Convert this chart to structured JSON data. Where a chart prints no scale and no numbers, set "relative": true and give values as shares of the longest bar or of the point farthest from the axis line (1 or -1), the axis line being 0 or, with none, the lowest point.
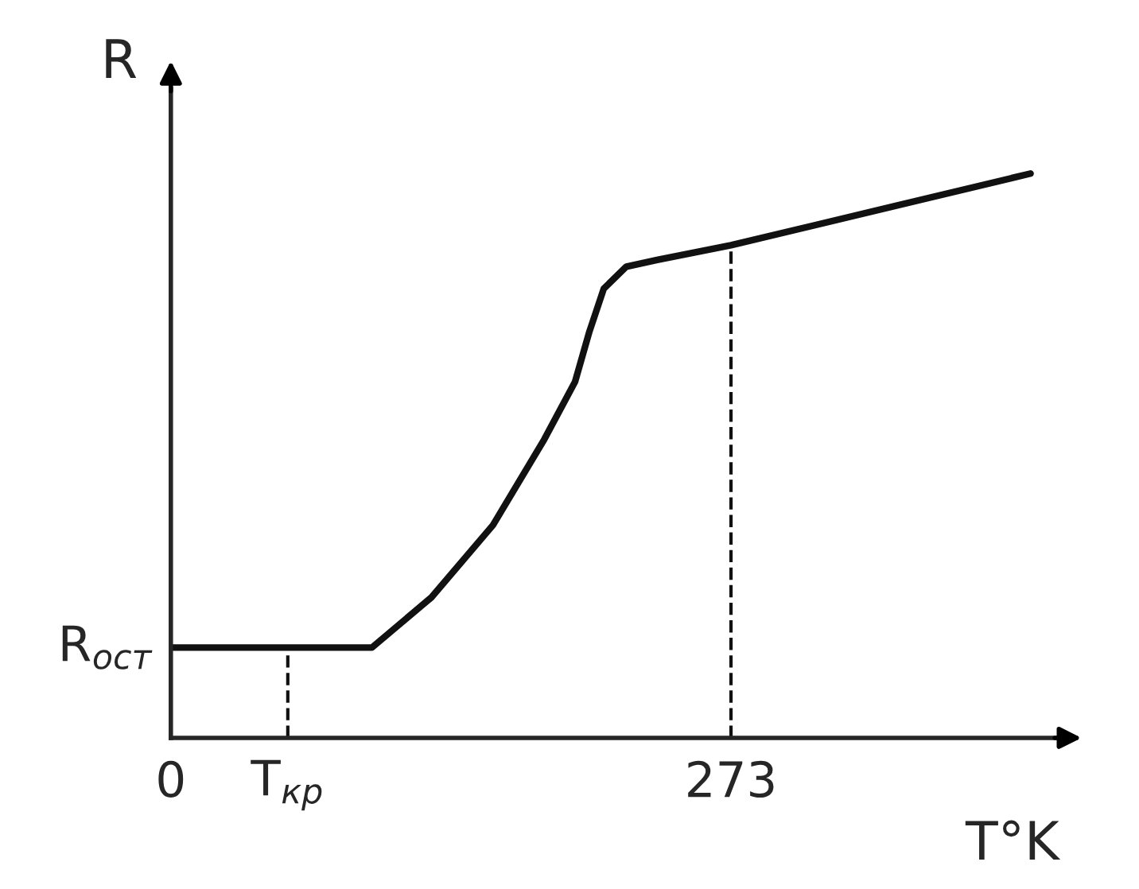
{
  "chart_data": {
    "type": "line",
    "relative": true,
    "xlabel": "T°K",
    "ylabel": "R",
    "x": [
      0,
      98,
      127,
      157,
      182,
      197,
      204,
      211,
      222,
      237,
      273,
      419
    ],
    "series": [
      {
        "color": "#111111",
        "values": [
          0.16,
          0.16,
          0.249,
          0.377,
          0.529,
          0.631,
          0.72,
          0.796,
          0.835,
          0.847,
          0.873,
          1.0
        ]
      }
    ],
    "xlim": [
      0,
      433
    ],
    "xticks": [
      0,
      {
        "value": 57,
        "label": "T$_{кр}$"
      },
      273
    ],
    "ref_lines": [
      {
        "axis": "x",
        "value": 57,
        "line_style": "dashed",
        "color": "#111111"
      },
      {
        "axis": "x",
        "value": 273,
        "line_style": "dashed",
        "color": "#111111"
      }
    ],
    "annotations": [
      {
        "text": "R$_{ост}$",
        "x": 0,
        "y": 0.16
      }
    ],
    "grid": false,
    "legend": false,
    "marker": "none",
    "line_style": "solid",
    "tick_labels": "x"
  }
}
